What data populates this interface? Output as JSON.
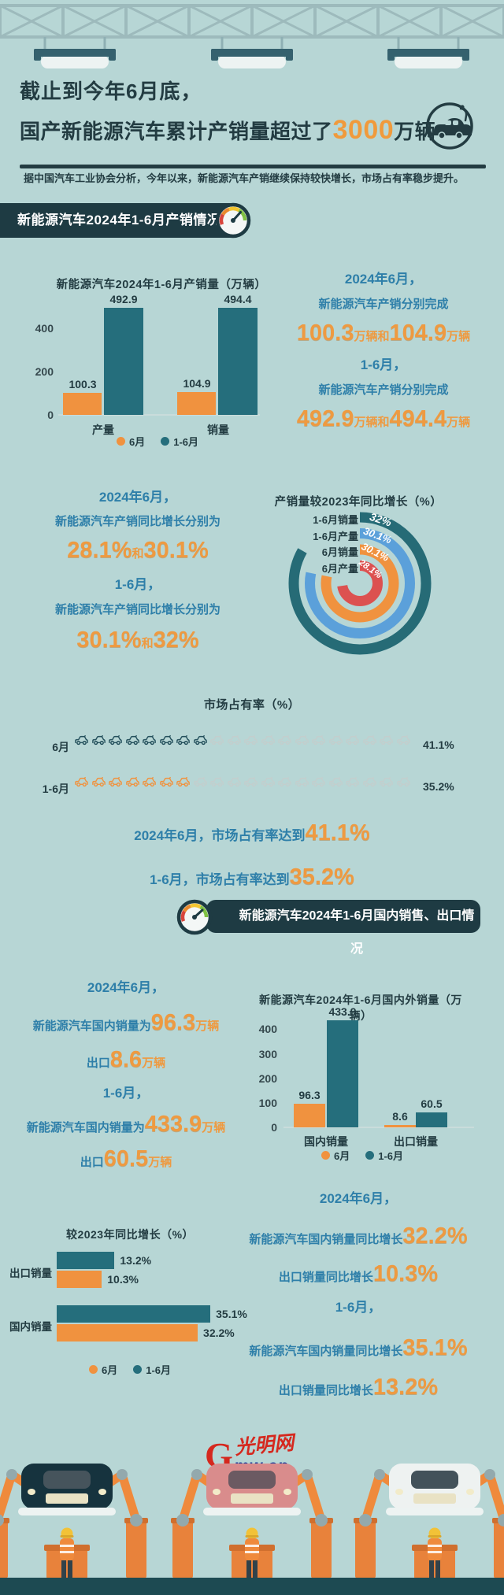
{
  "colors": {
    "background": "#b7d6d5",
    "dark": "#233c42",
    "banner_bg": "#1e3b43",
    "teal_bar": "#256e7c",
    "orange": "#f0923f",
    "orange_number": "#ee9a41",
    "teal_text": "#2e7fa9",
    "donut_blue": "#5ba0da",
    "donut_red": "#dc5150",
    "logo_red": "#d5281e",
    "logo_blue": "#1f3f9a"
  },
  "header": {
    "title_line1": "截止到今年6月底，",
    "title_line2_prefix": "国产新能源汽车累计产销量超过了",
    "title_highlight": "3000",
    "title_suffix": "万辆",
    "subtitle": "据中国汽车工业协会分析，今年以来，新能源汽车产销继续保持较快增长，市场占有率稳步提升。"
  },
  "section1": {
    "banner": "新能源汽车2024年1-6月产销情况",
    "stats_a": {
      "l1": "2024年6月，",
      "l2": "新能源汽车产销分别完成",
      "v1": "100.3",
      "u1": "万辆",
      "conj1": "和",
      "v2": "104.9",
      "u2": "万辆",
      "l3": "1-6月，",
      "l4": "新能源汽车产销分别完成",
      "v3": "492.9",
      "u3": "万辆",
      "conj2": "和",
      "v4": "494.4",
      "u4": "万辆"
    },
    "stats_b": {
      "l1": "2024年6月，",
      "l2": "新能源汽车产销同比增长分别为",
      "v1": "28.1%",
      "conj1": "和",
      "v2": "30.1%",
      "l3": "1-6月，",
      "l4": "新能源汽车产销同比增长分别为",
      "v3": "30.1%",
      "conj2": "和",
      "v4": "32%"
    },
    "donut": {
      "title": "产销量较2023年同比增长（%）",
      "rings": [
        {
          "label": "1-6月销量",
          "display": "32%",
          "value": 32,
          "color": "#266b76"
        },
        {
          "label": "1-6月产量",
          "display": "30.1%",
          "value": 30.1,
          "color": "#5ba0da"
        },
        {
          "label": "6月销量",
          "display": "30.1%",
          "value": 30.1,
          "color": "#f0923f"
        },
        {
          "label": "6月产量",
          "display": "28.1%",
          "value": 28.1,
          "color": "#dc5150"
        }
      ]
    },
    "market": {
      "title": "市场占有率（%）",
      "rows": [
        {
          "label": "6月",
          "value": "41.1%",
          "filled": 8,
          "total": 20,
          "color": "#24505c"
        },
        {
          "label": "1-6月",
          "value": "35.2%",
          "filled": 7,
          "total": 20,
          "color": "#f0923f"
        }
      ],
      "line1_prefix": "2024年6月，市场占有率达到",
      "line1_value": "41.1%",
      "line2_prefix": "1-6月，市场占有率达到",
      "line2_value": "35.2%"
    }
  },
  "section2": {
    "banner": "新能源汽车2024年1-6月国内销售、出口情况",
    "stats_a": {
      "l1": "2024年6月，",
      "l2p": "新能源汽车国内销量为",
      "l2v": "96.3",
      "l2u": "万辆",
      "l3p": "出口",
      "l3v": "8.6",
      "l3u": "万辆",
      "l4": "1-6月，",
      "l5p": "新能源汽车国内销量为",
      "l5v": "433.9",
      "l5u": "万辆",
      "l6p": "出口",
      "l6v": "60.5",
      "l6u": "万辆"
    },
    "stats_b": {
      "l1": "2024年6月，",
      "l2p": "新能源汽车国内销量同比增长",
      "l2v": "32.2%",
      "l3p": "出口销量同比增长",
      "l3v": "10.3%",
      "l4": "1-6月，",
      "l5p": "新能源汽车国内销量同比增长",
      "l5v": "35.1%",
      "l6p": "出口销量同比增长",
      "l6v": "13.2%"
    },
    "hbar_labels": {
      "cum_exp": "13.2%",
      "jun_exp": "10.3%",
      "cum_dom": "35.1%",
      "jun_dom": "32.2%"
    }
  },
  "footer": {
    "logo_g": "G",
    "logo_script": "光明网",
    "logo_domain": "mw.cn",
    "car_colors": [
      "#16333e",
      "#d98c8c",
      "#eef2f1"
    ]
  },
  "chart_data": [
    {
      "type": "bar",
      "title": "新能源汽车2024年1-6月产销量（万辆）",
      "categories": [
        "产量",
        "销量"
      ],
      "series": [
        {
          "name": "6月",
          "values": [
            100.3,
            104.9
          ]
        },
        {
          "name": "1-6月",
          "values": [
            492.9,
            494.4
          ]
        }
      ],
      "ylabel": "万辆",
      "ylim": [
        0,
        500
      ],
      "yticks": [
        0,
        200,
        400
      ],
      "legend_position": "bottom",
      "grid": false
    },
    {
      "type": "radial-bar",
      "title": "产销量较2023年同比增长（%）",
      "categories": [
        "1-6月销量",
        "1-6月产量",
        "6月销量",
        "6月产量"
      ],
      "values": [
        32,
        30.1,
        30.1,
        28.1
      ],
      "unit": "%"
    },
    {
      "type": "pictogram",
      "title": "市场占有率（%）",
      "categories": [
        "6月",
        "1-6月"
      ],
      "values": [
        41.1,
        35.2
      ],
      "unit": "%",
      "icons_per_row": 20
    },
    {
      "type": "bar",
      "title": "新能源汽车2024年1-6月国内外销量（万辆）",
      "categories": [
        "国内销量",
        "出口销量"
      ],
      "series": [
        {
          "name": "6月",
          "values": [
            96.3,
            8.6
          ]
        },
        {
          "name": "1-6月",
          "values": [
            433.9,
            60.5
          ]
        }
      ],
      "ylabel": "万辆",
      "ylim": [
        0,
        450
      ],
      "yticks": [
        0,
        100,
        200,
        300,
        400
      ],
      "legend_position": "bottom",
      "grid": false
    },
    {
      "type": "bar-horizontal",
      "title": "较2023年同比增长（%）",
      "categories": [
        "出口销量",
        "国内销量"
      ],
      "series": [
        {
          "name": "6月",
          "values": [
            10.3,
            32.2
          ]
        },
        {
          "name": "1-6月",
          "values": [
            13.2,
            35.1
          ]
        }
      ],
      "unit": "%",
      "legend_position": "bottom"
    }
  ]
}
